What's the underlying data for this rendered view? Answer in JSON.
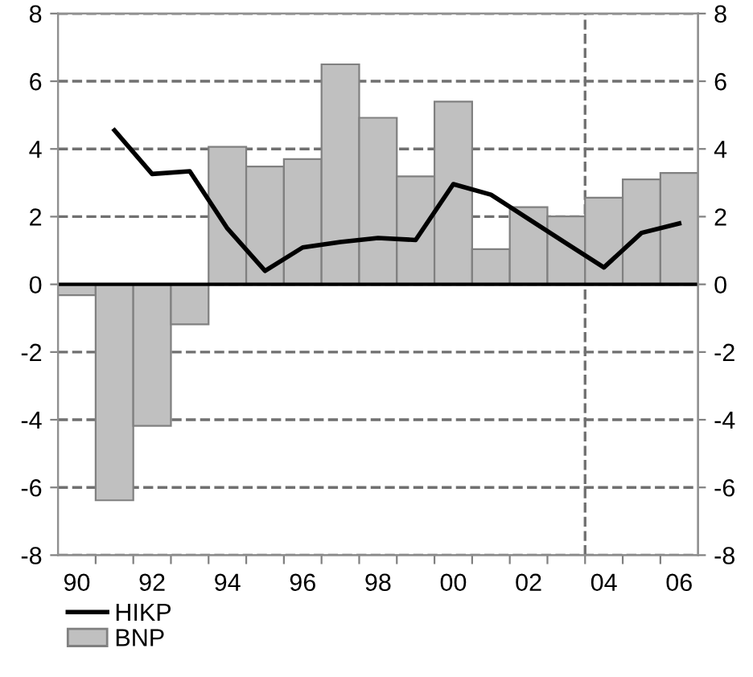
{
  "chart_data": {
    "type": "bar",
    "x": [
      1990,
      1991,
      1992,
      1993,
      1994,
      1995,
      1996,
      1997,
      1998,
      1999,
      2000,
      2001,
      2002,
      2003,
      2004,
      2005,
      2006
    ],
    "xlim": [
      1989.5,
      2006.5
    ],
    "xticks": [
      {
        "value": 1990,
        "label": "90"
      },
      {
        "value": 1992,
        "label": "92"
      },
      {
        "value": 1994,
        "label": "94"
      },
      {
        "value": 1996,
        "label": "96"
      },
      {
        "value": 1998,
        "label": "98"
      },
      {
        "value": 2000,
        "label": "00"
      },
      {
        "value": 2002,
        "label": "02"
      },
      {
        "value": 2004,
        "label": "04"
      },
      {
        "value": 2006,
        "label": "06"
      },
      {
        "value": 1990.5,
        "label": null
      },
      {
        "value": 1991.5,
        "label": null
      },
      {
        "value": 1992.5,
        "label": null
      },
      {
        "value": 1993.5,
        "label": null
      },
      {
        "value": 1994.5,
        "label": null
      },
      {
        "value": 1995.5,
        "label": null
      },
      {
        "value": 1996.5,
        "label": null
      },
      {
        "value": 1997.5,
        "label": null
      },
      {
        "value": 1998.5,
        "label": null
      },
      {
        "value": 1999.5,
        "label": null
      },
      {
        "value": 2000.5,
        "label": null
      },
      {
        "value": 2001.5,
        "label": null
      },
      {
        "value": 2002.5,
        "label": null
      },
      {
        "value": 2003.5,
        "label": null
      },
      {
        "value": 2004.5,
        "label": null
      },
      {
        "value": 2005.5,
        "label": null
      }
    ],
    "ylim": [
      -8,
      8
    ],
    "yticks": [
      -8,
      -6,
      -4,
      -2,
      0,
      2,
      4,
      6,
      8
    ],
    "y2lim": [
      -8,
      8
    ],
    "y2ticks": [
      -8,
      -6,
      -4,
      -2,
      0,
      2,
      4,
      6,
      8
    ],
    "grid": "y",
    "legend": "bottom left",
    "ref_lines": [
      {
        "axis": "x",
        "value": 2003.5,
        "line_style": "dashed",
        "color": "#707070"
      },
      {
        "axis": "y",
        "value": 0,
        "color": "#000000"
      }
    ],
    "series": [
      {
        "name": "HIKP",
        "type": "line",
        "color": "#000000",
        "values": [
          null,
          4.55,
          3.26,
          3.34,
          1.65,
          0.4,
          1.09,
          1.25,
          1.37,
          1.31,
          2.96,
          2.65,
          1.93,
          1.21,
          0.5,
          1.52,
          1.8
        ]
      },
      {
        "name": "BNP",
        "color": "#c0c0c0",
        "values": [
          -0.32,
          -6.38,
          -4.18,
          -1.18,
          4.06,
          3.48,
          3.7,
          6.5,
          4.92,
          3.19,
          5.4,
          1.04,
          2.28,
          2.01,
          2.56,
          3.1,
          3.29
        ]
      }
    ]
  }
}
